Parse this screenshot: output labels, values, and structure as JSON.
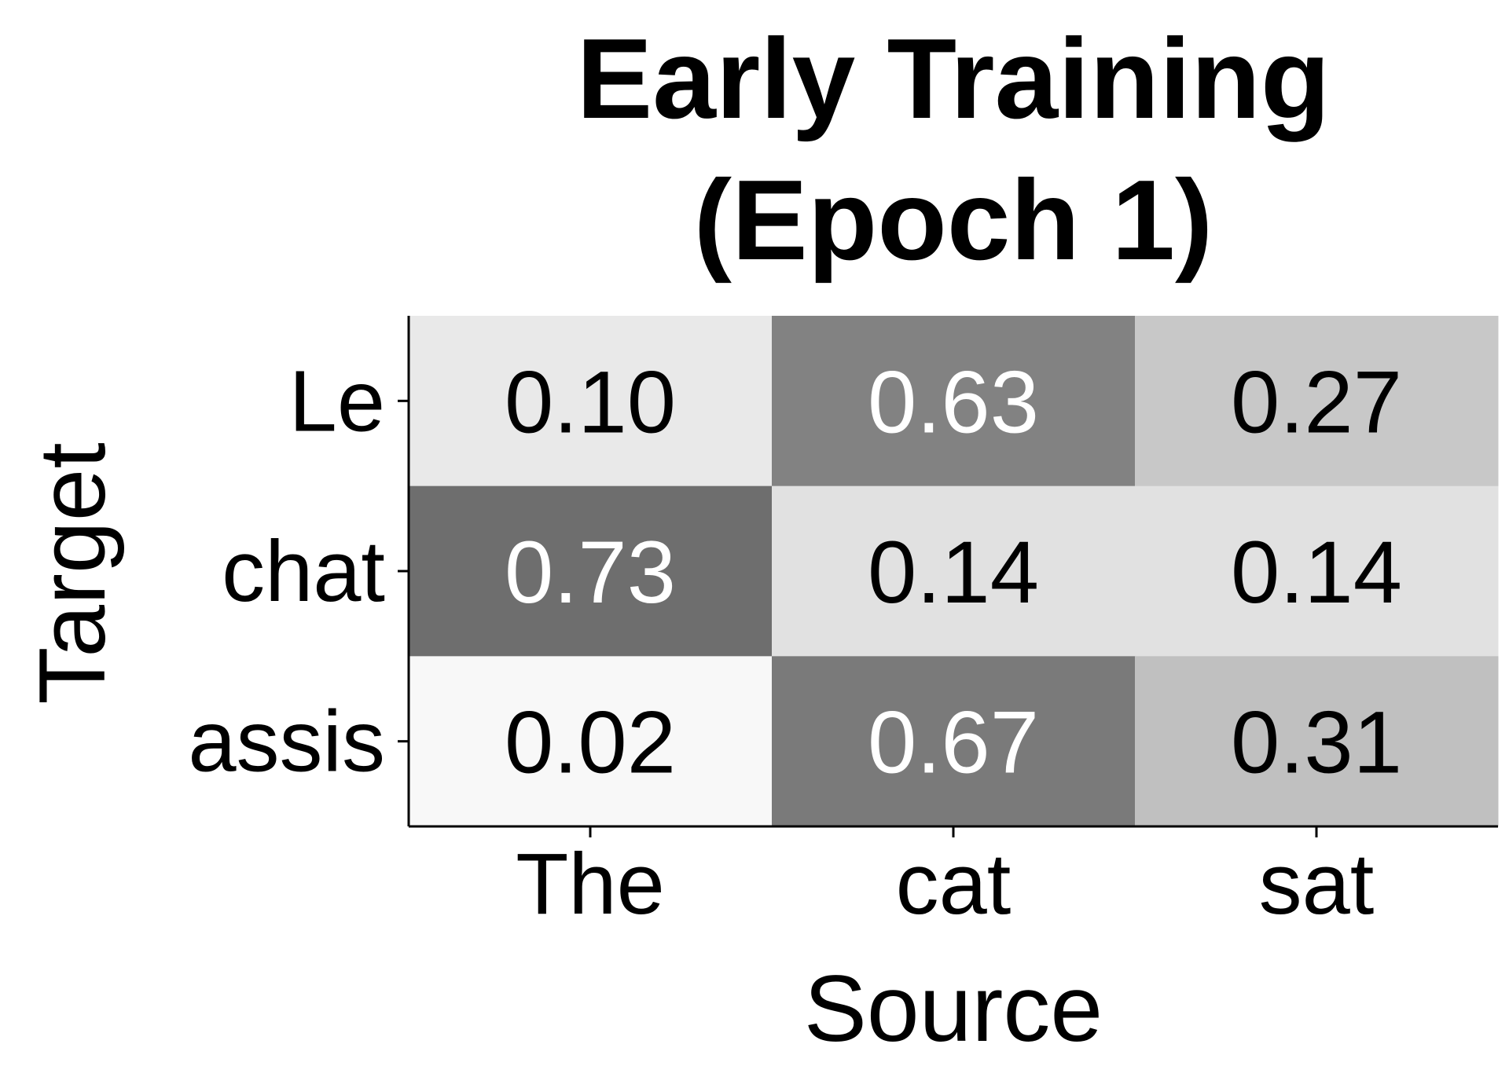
{
  "chart_data": {
    "type": "heatmap",
    "title_lines": [
      "Early Training",
      "(Epoch 1)"
    ],
    "xlabel": "Source",
    "ylabel": "Target",
    "x_categories": [
      "The",
      "cat",
      "sat"
    ],
    "y_categories": [
      "Le",
      "chat",
      "assis"
    ],
    "values": [
      [
        0.1,
        0.63,
        0.27
      ],
      [
        0.73,
        0.14,
        0.14
      ],
      [
        0.02,
        0.67,
        0.31
      ]
    ],
    "value_labels": [
      [
        "0.10",
        "0.63",
        "0.27"
      ],
      [
        "0.73",
        "0.14",
        "0.14"
      ],
      [
        "0.02",
        "0.67",
        "0.31"
      ]
    ],
    "colormap": "greys",
    "vmin": 0,
    "vmax": 1,
    "colors": {
      "cell_min": "#fcfcfc",
      "cell_max": "#3a3a3a",
      "text_dark": "#000000",
      "text_light": "#ffffff",
      "axis": "#000000"
    },
    "grid": false,
    "legend": "none"
  }
}
